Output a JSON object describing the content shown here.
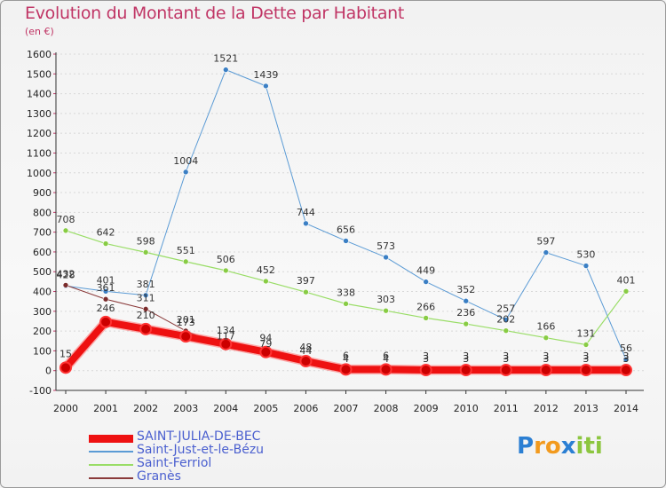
{
  "chart_data": {
    "type": "line",
    "title": "Evolution du Montant de la Dette par Habitant",
    "subtitle": "(en €)",
    "x": [
      "2000",
      "2001",
      "2002",
      "2003",
      "2004",
      "2005",
      "2006",
      "2007",
      "2008",
      "2009",
      "2010",
      "2011",
      "2012",
      "2013",
      "2014"
    ],
    "ylim": [
      -100,
      1600
    ],
    "yticks": [
      -100,
      0,
      100,
      200,
      300,
      400,
      500,
      600,
      700,
      800,
      900,
      1000,
      1100,
      1200,
      1300,
      1400,
      1500,
      1600
    ],
    "grid": "horizontal dashed",
    "legend_position": "bottom-left",
    "series": [
      {
        "name": "Saint-Just-et-le-Bézu",
        "color": "#5b9bd5",
        "marker": "#3b7fc4",
        "width": 1,
        "values": [
          428,
          401,
          381,
          1004,
          1521,
          1439,
          744,
          656,
          573,
          449,
          352,
          257,
          597,
          530,
          56
        ],
        "labels": [
          "428",
          "401",
          "381",
          "1004",
          "1521",
          "1439",
          "744",
          "656",
          "573",
          "449",
          "352",
          "257",
          "597",
          "530",
          "56"
        ]
      },
      {
        "name": "Saint-Ferriol",
        "color": "#99dd66",
        "marker": "#88cc44",
        "width": 1.2,
        "values": [
          708,
          642,
          598,
          551,
          506,
          452,
          397,
          338,
          303,
          266,
          236,
          202,
          166,
          131,
          401
        ],
        "labels": [
          "708",
          "642",
          "598",
          "551",
          "506",
          "452",
          "397",
          "338",
          "303",
          "266",
          "236",
          "202",
          "166",
          "131",
          "401"
        ]
      },
      {
        "name": "Granès",
        "color": "#8a3a3a",
        "marker": "#7a2c2c",
        "width": 1,
        "values": [
          432,
          361,
          311,
          201,
          117,
          79,
          44,
          4,
          4,
          3,
          3,
          3,
          3,
          3,
          3
        ],
        "labels": [
          "432",
          "361",
          "311",
          "201",
          "117",
          "79",
          "44",
          "4",
          "4",
          "3",
          "3",
          "3",
          "3",
          "3",
          "3"
        ]
      },
      {
        "name": "SAINT-JULIA-DE-BEC",
        "color": "#ee1111",
        "marker": "#cc0000",
        "width": 8,
        "values": [
          15,
          246,
          210,
          173,
          134,
          94,
          48,
          6,
          6,
          3,
          3,
          3,
          3,
          3,
          3
        ],
        "labels": [
          "15",
          "246",
          "210",
          "173",
          "134",
          "94",
          "48",
          "6",
          "6",
          "3",
          "3",
          "3",
          "3",
          "3",
          "3"
        ]
      }
    ],
    "legend_order": [
      "SAINT-JULIA-DE-BEC",
      "Saint-Just-et-le-Bézu",
      "Saint-Ferriol",
      "Granès"
    ]
  },
  "logo": {
    "letters": [
      "P",
      "r",
      "o",
      "x",
      "i",
      "t",
      "i"
    ],
    "colors": [
      "#2b7fd3",
      "#f29a1e",
      "#f29a1e",
      "#2b7fd3",
      "#8cc63f",
      "#8cc63f",
      "#8cc63f"
    ]
  }
}
